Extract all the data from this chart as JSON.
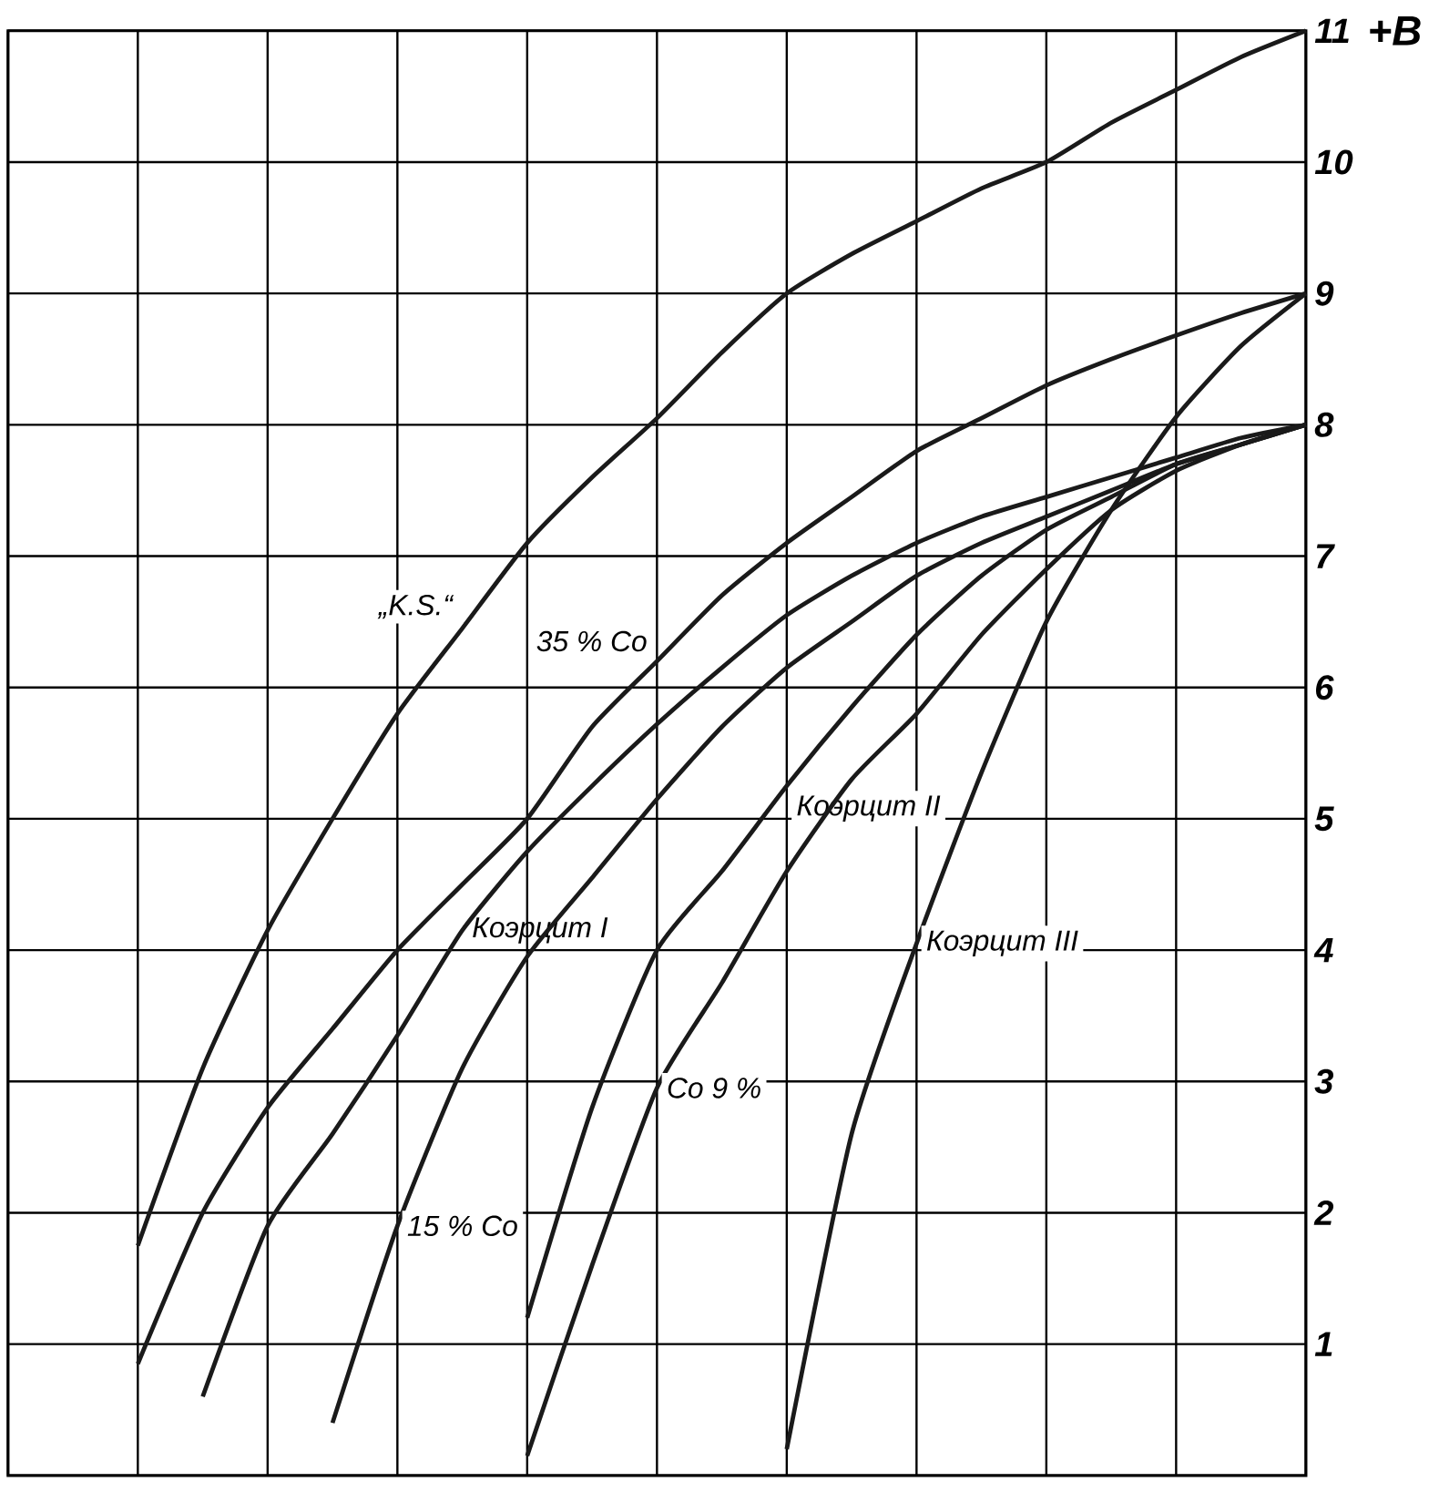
{
  "chart_data": {
    "type": "line",
    "ylabel": "+B",
    "categories": [
      null,
      null,
      null,
      null,
      null,
      null,
      null,
      null,
      null,
      null,
      null,
      null,
      null,
      null,
      null,
      null,
      null,
      null,
      null,
      null,
      null
    ],
    "ylim": [
      0,
      11
    ],
    "yticks": [
      1,
      2,
      3,
      4,
      5,
      6,
      7,
      8,
      9,
      10,
      11
    ],
    "grid": true,
    "tick_labels": "y",
    "marker": "none",
    "line_style": "solid",
    "series": [
      {
        "name": "„K.S.“",
        "color": "#1a1a1a",
        "values": [
          null,
          null,
          1.75,
          3.1,
          4.15,
          5.0,
          5.8,
          6.45,
          7.1,
          7.6,
          8.05,
          8.55,
          9.0,
          9.3,
          9.55,
          9.8,
          10.0,
          10.3,
          10.55,
          10.8,
          11.0
        ]
      },
      {
        "name": "35 % Co",
        "color": "#1a1a1a",
        "values": [
          null,
          null,
          0.85,
          2.0,
          2.8,
          3.4,
          4.0,
          4.5,
          5.0,
          5.7,
          6.2,
          6.7,
          7.1,
          7.45,
          7.8,
          8.05,
          8.3,
          8.5,
          8.68,
          8.85,
          9.0
        ]
      },
      {
        "name": "Коэрцит I",
        "color": "#1a1a1a",
        "values": [
          null,
          null,
          null,
          0.6,
          1.9,
          2.6,
          3.35,
          4.15,
          4.75,
          5.25,
          5.72,
          6.15,
          6.55,
          6.85,
          7.1,
          7.3,
          7.45,
          7.6,
          7.75,
          7.9,
          8.0
        ]
      },
      {
        "name": "15 % Co",
        "color": "#1a1a1a",
        "values": [
          null,
          null,
          null,
          null,
          null,
          0.4,
          1.9,
          3.1,
          3.95,
          4.55,
          5.15,
          5.7,
          6.15,
          6.5,
          6.85,
          7.1,
          7.3,
          7.5,
          7.7,
          7.85,
          8.0
        ]
      },
      {
        "name": "Коэрцит II",
        "color": "#1a1a1a",
        "values": [
          null,
          null,
          null,
          null,
          null,
          null,
          null,
          null,
          1.2,
          2.8,
          4.0,
          4.6,
          5.25,
          5.85,
          6.4,
          6.85,
          7.2,
          7.45,
          7.7,
          7.85,
          8.0
        ]
      },
      {
        "name": "Co 9 %",
        "color": "#1a1a1a",
        "values": [
          null,
          null,
          null,
          null,
          null,
          null,
          null,
          null,
          0.15,
          1.6,
          2.95,
          3.75,
          4.6,
          5.3,
          5.8,
          6.4,
          6.9,
          7.35,
          7.65,
          7.85,
          8.0
        ]
      },
      {
        "name": "Коэрцит III",
        "color": "#1a1a1a",
        "values": [
          null,
          null,
          null,
          null,
          null,
          null,
          null,
          null,
          null,
          null,
          null,
          null,
          0.2,
          2.6,
          4.05,
          5.35,
          6.5,
          7.35,
          8.06,
          8.6,
          9.0
        ]
      }
    ]
  }
}
